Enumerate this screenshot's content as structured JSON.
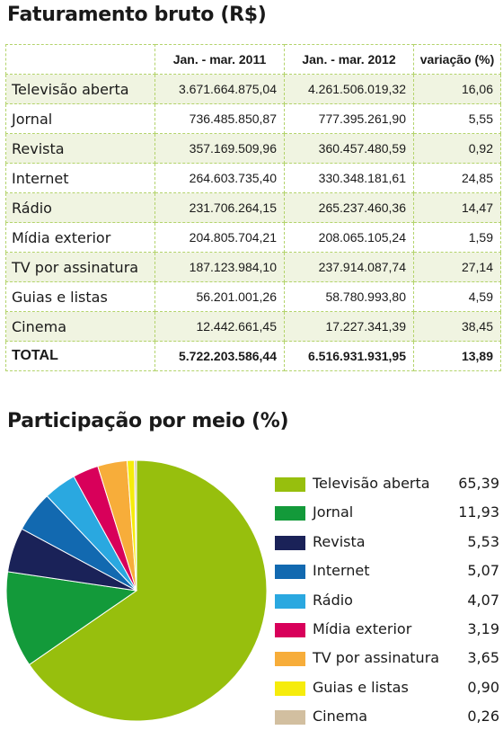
{
  "table_title": "Faturamento bruto (R$)",
  "pie_title": "Participação por meio (%)",
  "headers": [
    "",
    "Jan. - mar. 2011",
    "Jan. - mar. 2012",
    "variação (%)"
  ],
  "rows": [
    {
      "label": "Televisão aberta",
      "y2011": "3.671.664.875,04",
      "y2012": "4.261.506.019,32",
      "var": "16,06"
    },
    {
      "label": "Jornal",
      "y2011": "736.485.850,87",
      "y2012": "777.395.261,90",
      "var": "5,55"
    },
    {
      "label": "Revista",
      "y2011": "357.169.509,96",
      "y2012": "360.457.480,59",
      "var": "0,92"
    },
    {
      "label": "Internet",
      "y2011": "264.603.735,40",
      "y2012": "330.348.181,61",
      "var": "24,85"
    },
    {
      "label": "Rádio",
      "y2011": "231.706.264,15",
      "y2012": "265.237.460,36",
      "var": "14,47"
    },
    {
      "label": "Mídia exterior",
      "y2011": "204.805.704,21",
      "y2012": "208.065.105,24",
      "var": "1,59"
    },
    {
      "label": "TV por assinatura",
      "y2011": "187.123.984,10",
      "y2012": "237.914.087,74",
      "var": "27,14"
    },
    {
      "label": "Guias e listas",
      "y2011": "56.201.001,26",
      "y2012": "58.780.993,80",
      "var": "4,59"
    },
    {
      "label": "Cinema",
      "y2011": "12.442.661,45",
      "y2012": "17.227.341,39",
      "var": "38,45"
    }
  ],
  "total": {
    "label": "TOTAL",
    "y2011": "5.722.203.586,44",
    "y2012": "6.516.931.931,95",
    "var": "13,89"
  },
  "colors": {
    "row_shade": "#f0f4e1",
    "grid": "#b3d36b",
    "slices": [
      "#97bf0d",
      "#139a3a",
      "#1a2258",
      "#1269b0",
      "#2aa8e0",
      "#d8005a",
      "#f7ad3a",
      "#f6ec0c",
      "#d2bfa0"
    ]
  },
  "chart_data": [
    {
      "type": "table",
      "title": "Faturamento bruto (R$)",
      "columns": [
        "Jan. - mar. 2011",
        "Jan. - mar. 2012",
        "variação (%)"
      ],
      "categories": [
        "Televisão aberta",
        "Jornal",
        "Revista",
        "Internet",
        "Rádio",
        "Mídia exterior",
        "TV por assinatura",
        "Guias e listas",
        "Cinema",
        "TOTAL"
      ],
      "series": [
        {
          "name": "Jan. - mar. 2011",
          "values": [
            3671664875.04,
            736485850.87,
            357169509.96,
            264603735.4,
            231706264.15,
            204805704.21,
            187123984.1,
            56201001.26,
            12442661.45,
            5722203586.44
          ]
        },
        {
          "name": "Jan. - mar. 2012",
          "values": [
            4261506019.32,
            777395261.9,
            360457480.59,
            330348181.61,
            265237460.36,
            208065105.24,
            237914087.74,
            58780993.8,
            17227341.39,
            6516931931.95
          ]
        },
        {
          "name": "variação (%)",
          "values": [
            16.06,
            5.55,
            0.92,
            24.85,
            14.47,
            1.59,
            27.14,
            4.59,
            38.45,
            13.89
          ]
        }
      ]
    },
    {
      "type": "pie",
      "title": "Participação por meio (%)",
      "categories": [
        "Televisão aberta",
        "Jornal",
        "Revista",
        "Internet",
        "Rádio",
        "Mídia exterior",
        "TV por assinatura",
        "Guias e listas",
        "Cinema"
      ],
      "values": [
        65.39,
        11.93,
        5.53,
        5.07,
        4.07,
        3.19,
        3.65,
        0.9,
        0.26
      ],
      "value_labels": [
        "65,39",
        "11,93",
        "5,53",
        "5,07",
        "4,07",
        "3,19",
        "3,65",
        "0,90",
        "0,26"
      ],
      "legend": "right"
    }
  ]
}
